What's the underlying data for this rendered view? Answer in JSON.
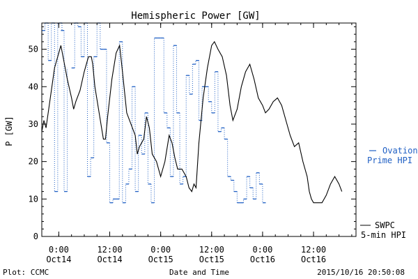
{
  "chart_data": {
    "type": "line",
    "title": "Hemispheric Power [GW]",
    "xlabel": "Date and Time",
    "ylabel": "P [GW]",
    "xlim": [
      "2015-10-13 20:00",
      "2015-10-16 22:00"
    ],
    "ylim": [
      0,
      57
    ],
    "yticks": [
      0,
      10,
      20,
      30,
      40,
      50
    ],
    "xticks": [
      {
        "t": "2015-10-14 00:00",
        "time": "0:00",
        "date": "Oct14"
      },
      {
        "t": "2015-10-14 12:00",
        "time": "12:00",
        "date": "Oct14"
      },
      {
        "t": "2015-10-15 00:00",
        "time": "0:00",
        "date": "Oct15"
      },
      {
        "t": "2015-10-15 12:00",
        "time": "12:00",
        "date": "Oct15"
      },
      {
        "t": "2015-10-16 00:00",
        "time": "0:00",
        "date": "Oct16"
      },
      {
        "t": "2015-10-16 12:00",
        "time": "12:00",
        "date": "Oct16"
      }
    ],
    "series": [
      {
        "name": "SWPC 5-min HPI",
        "color": "#000000",
        "style": "solid",
        "points": [
          [
            "2015-10-13 20:00",
            28
          ],
          [
            "2015-10-13 20:30",
            31
          ],
          [
            "2015-10-13 21:00",
            29
          ],
          [
            "2015-10-13 22:00",
            37
          ],
          [
            "2015-10-13 23:00",
            45
          ],
          [
            "2015-10-14 00:00",
            49
          ],
          [
            "2015-10-14 00:30",
            51
          ],
          [
            "2015-10-14 01:00",
            48
          ],
          [
            "2015-10-14 02:00",
            42
          ],
          [
            "2015-10-14 03:00",
            37
          ],
          [
            "2015-10-14 03:30",
            34
          ],
          [
            "2015-10-14 04:00",
            36
          ],
          [
            "2015-10-14 05:00",
            39
          ],
          [
            "2015-10-14 06:00",
            44
          ],
          [
            "2015-10-14 07:00",
            48
          ],
          [
            "2015-10-14 07:40",
            48
          ],
          [
            "2015-10-14 08:00",
            46
          ],
          [
            "2015-10-14 08:30",
            40
          ],
          [
            "2015-10-14 09:30",
            33
          ],
          [
            "2015-10-14 10:30",
            26
          ],
          [
            "2015-10-14 11:00",
            26
          ],
          [
            "2015-10-14 11:30",
            32
          ],
          [
            "2015-10-14 12:30",
            42
          ],
          [
            "2015-10-14 13:30",
            49
          ],
          [
            "2015-10-14 14:20",
            51
          ],
          [
            "2015-10-14 15:00",
            44
          ],
          [
            "2015-10-14 16:00",
            33
          ],
          [
            "2015-10-14 17:00",
            30
          ],
          [
            "2015-10-14 18:00",
            27
          ],
          [
            "2015-10-14 18:30",
            22
          ],
          [
            "2015-10-14 19:00",
            24
          ],
          [
            "2015-10-14 20:00",
            26
          ],
          [
            "2015-10-14 20:40",
            32
          ],
          [
            "2015-10-14 21:20",
            29
          ],
          [
            "2015-10-14 22:00",
            22
          ],
          [
            "2015-10-14 23:00",
            20
          ],
          [
            "2015-10-15 00:00",
            16
          ],
          [
            "2015-10-15 01:00",
            20
          ],
          [
            "2015-10-15 02:00",
            27
          ],
          [
            "2015-10-15 02:40",
            25
          ],
          [
            "2015-10-15 03:20",
            21
          ],
          [
            "2015-10-15 04:00",
            18
          ],
          [
            "2015-10-15 05:00",
            18
          ],
          [
            "2015-10-15 06:00",
            16
          ],
          [
            "2015-10-15 06:40",
            13
          ],
          [
            "2015-10-15 07:20",
            12
          ],
          [
            "2015-10-15 07:50",
            14
          ],
          [
            "2015-10-15 08:20",
            13
          ],
          [
            "2015-10-15 09:00",
            25
          ],
          [
            "2015-10-15 10:00",
            37
          ],
          [
            "2015-10-15 11:00",
            45
          ],
          [
            "2015-10-15 12:00",
            51
          ],
          [
            "2015-10-15 12:40",
            52
          ],
          [
            "2015-10-15 13:30",
            50
          ],
          [
            "2015-10-15 14:30",
            48
          ],
          [
            "2015-10-15 15:30",
            43
          ],
          [
            "2015-10-15 16:20",
            35
          ],
          [
            "2015-10-15 17:00",
            31
          ],
          [
            "2015-10-15 18:00",
            34
          ],
          [
            "2015-10-15 19:00",
            40
          ],
          [
            "2015-10-15 20:00",
            44
          ],
          [
            "2015-10-15 21:00",
            46
          ],
          [
            "2015-10-15 22:00",
            42
          ],
          [
            "2015-10-15 23:00",
            37
          ],
          [
            "2015-10-16 00:00",
            35
          ],
          [
            "2015-10-16 00:40",
            33
          ],
          [
            "2015-10-16 01:30",
            34
          ],
          [
            "2015-10-16 02:30",
            36
          ],
          [
            "2015-10-16 03:30",
            37
          ],
          [
            "2015-10-16 04:30",
            35
          ],
          [
            "2015-10-16 05:30",
            31
          ],
          [
            "2015-10-16 06:30",
            27
          ],
          [
            "2015-10-16 07:30",
            24
          ],
          [
            "2015-10-16 08:30",
            25
          ],
          [
            "2015-10-16 09:30",
            20
          ],
          [
            "2015-10-16 10:30",
            16
          ],
          [
            "2015-10-16 11:00",
            12
          ],
          [
            "2015-10-16 11:30",
            10
          ],
          [
            "2015-10-16 12:00",
            9
          ],
          [
            "2015-10-16 13:00",
            9
          ],
          [
            "2015-10-16 14:00",
            9
          ],
          [
            "2015-10-16 15:00",
            11
          ],
          [
            "2015-10-16 16:00",
            14
          ],
          [
            "2015-10-16 17:00",
            16
          ],
          [
            "2015-10-16 18:00",
            14
          ],
          [
            "2015-10-16 18:40",
            12
          ]
        ]
      },
      {
        "name": "Ovation Prime HPI",
        "color": "#1f5fc4",
        "style": "stepped-dashed",
        "points": [
          [
            "2015-10-13 20:00",
            55
          ],
          [
            "2015-10-13 20:45",
            57
          ],
          [
            "2015-10-13 21:30",
            47
          ],
          [
            "2015-10-13 22:15",
            57
          ],
          [
            "2015-10-13 23:00",
            12
          ],
          [
            "2015-10-14 00:00",
            57
          ],
          [
            "2015-10-14 00:30",
            55
          ],
          [
            "2015-10-14 01:15",
            12
          ],
          [
            "2015-10-14 03:00",
            45
          ],
          [
            "2015-10-14 03:45",
            57
          ],
          [
            "2015-10-14 04:30",
            56
          ],
          [
            "2015-10-14 05:15",
            48
          ],
          [
            "2015-10-14 06:00",
            57
          ],
          [
            "2015-10-14 06:45",
            16
          ],
          [
            "2015-10-14 07:30",
            21
          ],
          [
            "2015-10-14 08:15",
            48
          ],
          [
            "2015-10-14 09:00",
            57
          ],
          [
            "2015-10-14 09:45",
            50
          ],
          [
            "2015-10-14 10:30",
            50
          ],
          [
            "2015-10-14 11:15",
            25
          ],
          [
            "2015-10-14 12:00",
            9
          ],
          [
            "2015-10-14 12:45",
            10
          ],
          [
            "2015-10-14 13:30",
            10
          ],
          [
            "2015-10-14 14:15",
            52
          ],
          [
            "2015-10-14 15:00",
            9
          ],
          [
            "2015-10-14 15:45",
            14
          ],
          [
            "2015-10-14 16:30",
            18
          ],
          [
            "2015-10-14 17:15",
            40
          ],
          [
            "2015-10-14 18:00",
            12
          ],
          [
            "2015-10-14 18:45",
            27
          ],
          [
            "2015-10-14 19:30",
            22
          ],
          [
            "2015-10-14 20:15",
            33
          ],
          [
            "2015-10-14 21:00",
            14
          ],
          [
            "2015-10-14 21:45",
            9
          ],
          [
            "2015-10-14 22:30",
            53
          ],
          [
            "2015-10-14 23:15",
            53
          ],
          [
            "2015-10-15 00:00",
            53
          ],
          [
            "2015-10-15 00:45",
            33
          ],
          [
            "2015-10-15 01:30",
            29
          ],
          [
            "2015-10-15 02:15",
            16
          ],
          [
            "2015-10-15 03:00",
            51
          ],
          [
            "2015-10-15 03:45",
            33
          ],
          [
            "2015-10-15 04:30",
            14
          ],
          [
            "2015-10-15 05:15",
            16
          ],
          [
            "2015-10-15 06:00",
            43
          ],
          [
            "2015-10-15 06:45",
            38
          ],
          [
            "2015-10-15 07:30",
            46
          ],
          [
            "2015-10-15 08:15",
            47
          ],
          [
            "2015-10-15 09:00",
            31
          ],
          [
            "2015-10-15 09:45",
            40
          ],
          [
            "2015-10-15 10:30",
            40
          ],
          [
            "2015-10-15 11:15",
            36
          ],
          [
            "2015-10-15 12:00",
            33
          ],
          [
            "2015-10-15 12:45",
            44
          ],
          [
            "2015-10-15 13:30",
            28
          ],
          [
            "2015-10-15 14:15",
            29
          ],
          [
            "2015-10-15 15:00",
            26
          ],
          [
            "2015-10-15 15:45",
            16
          ],
          [
            "2015-10-15 16:30",
            15
          ],
          [
            "2015-10-15 17:15",
            12
          ],
          [
            "2015-10-15 18:00",
            9
          ],
          [
            "2015-10-15 18:45",
            9
          ],
          [
            "2015-10-15 19:30",
            10
          ],
          [
            "2015-10-15 20:15",
            16
          ],
          [
            "2015-10-15 21:00",
            13
          ],
          [
            "2015-10-15 21:45",
            10
          ],
          [
            "2015-10-15 22:30",
            17
          ],
          [
            "2015-10-15 23:15",
            14
          ],
          [
            "2015-10-16 00:00",
            9
          ]
        ]
      }
    ],
    "legend": [
      {
        "line1": "SWPC",
        "line2": "5-min HPI",
        "color": "#000000",
        "position": "right-bottom"
      },
      {
        "line1": "Ovation",
        "line2": "Prime HPI",
        "color": "#1f5fc4",
        "position": "right-middle"
      }
    ],
    "grid": false
  },
  "footer": {
    "left": "Plot: CCMC",
    "right": "2015/10/16 20:50:08"
  }
}
